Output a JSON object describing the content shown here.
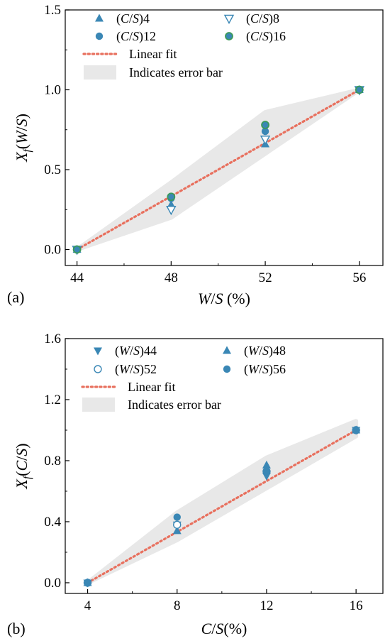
{
  "chart_data": [
    {
      "panel_label": "(a)",
      "type": "scatter",
      "title": "",
      "xlabel": "W/S (%)",
      "ylabel": "Xf(W/S)",
      "xlim": [
        43.5,
        57
      ],
      "ylim": [
        -0.1,
        1.5
      ],
      "xticks": [
        44,
        48,
        52,
        56
      ],
      "xticklabels": [
        "44",
        "48",
        "52",
        "56"
      ],
      "yticks": [
        0.0,
        0.5,
        1.0,
        1.5
      ],
      "yticklabels": [
        "0.0",
        "0.5",
        "1.0",
        "1.5"
      ],
      "legend": {
        "placement": "top-left",
        "entries": [
          {
            "label": "(C/S)4",
            "marker": "triangle-up"
          },
          {
            "label": "(C/S)8",
            "marker": "triangle-down-open"
          },
          {
            "label": "(C/S)12",
            "marker": "circle"
          },
          {
            "label": "(C/S)16",
            "marker": "circle-green-edge"
          },
          {
            "label": "Linear fit",
            "marker": "dotted-line"
          },
          {
            "label": "Indicates error bar",
            "marker": "shaded-band"
          }
        ]
      },
      "series": [
        {
          "name": "(C/S)4",
          "marker": "triangle-up",
          "points": [
            [
              44,
              0.0
            ],
            [
              48,
              0.28
            ],
            [
              52,
              0.66
            ],
            [
              56,
              1.0
            ]
          ]
        },
        {
          "name": "(C/S)8",
          "marker": "triangle-down-open",
          "points": [
            [
              44,
              0.0
            ],
            [
              48,
              0.25
            ],
            [
              52,
              0.69
            ],
            [
              56,
              1.0
            ]
          ]
        },
        {
          "name": "(C/S)12",
          "marker": "circle",
          "points": [
            [
              44,
              0.0
            ],
            [
              48,
              0.32
            ],
            [
              52,
              0.74
            ],
            [
              56,
              1.0
            ]
          ]
        },
        {
          "name": "(C/S)16",
          "marker": "circle-green-edge",
          "points": [
            [
              44,
              0.0
            ],
            [
              48,
              0.33
            ],
            [
              52,
              0.78
            ],
            [
              56,
              1.0
            ]
          ]
        }
      ],
      "fit_line": {
        "name": "Linear fit",
        "points": [
          [
            44,
            0.0
          ],
          [
            56,
            1.0
          ]
        ]
      },
      "error_band": {
        "name": "Indicates error bar",
        "x": [
          44,
          48,
          52,
          56
        ],
        "upper": [
          0.0,
          0.42,
          0.86,
          1.0
        ],
        "lower": [
          0.0,
          0.2,
          0.6,
          1.0
        ]
      }
    },
    {
      "panel_label": "(b)",
      "type": "scatter",
      "title": "",
      "xlabel": "C/S(%)",
      "ylabel": "Xf(C/S)",
      "xlim": [
        3,
        17.2
      ],
      "ylim": [
        -0.07,
        1.6
      ],
      "xticks": [
        4,
        8,
        12,
        16
      ],
      "xticklabels": [
        "4",
        "8",
        "12",
        "16"
      ],
      "yticks": [
        0.0,
        0.4,
        0.8,
        1.2,
        1.6
      ],
      "yticklabels": [
        "0.0",
        "0.4",
        "0.8",
        "1.2",
        "1.6"
      ],
      "legend": {
        "placement": "top-left",
        "entries": [
          {
            "label": "(W/S)44",
            "marker": "triangle-down"
          },
          {
            "label": "(W/S)48",
            "marker": "triangle-up"
          },
          {
            "label": "(W/S)52",
            "marker": "circle-open"
          },
          {
            "label": "(W/S)56",
            "marker": "circle"
          },
          {
            "label": "Linear fit",
            "marker": "dotted-line"
          },
          {
            "label": "Indicates error bar",
            "marker": "shaded-band"
          }
        ]
      },
      "series": [
        {
          "name": "(W/S)44",
          "marker": "triangle-down",
          "points": [
            [
              4,
              0.0
            ],
            [
              8,
              0.38
            ],
            [
              12,
              0.7
            ],
            [
              16,
              1.0
            ]
          ]
        },
        {
          "name": "(W/S)48",
          "marker": "triangle-up",
          "points": [
            [
              4,
              0.0
            ],
            [
              8,
              0.34
            ],
            [
              12,
              0.77
            ],
            [
              16,
              1.0
            ]
          ]
        },
        {
          "name": "(W/S)52",
          "marker": "circle-open",
          "points": [
            [
              4,
              0.0
            ],
            [
              8,
              0.38
            ],
            [
              12,
              0.73
            ],
            [
              16,
              1.0
            ]
          ]
        },
        {
          "name": "(W/S)56",
          "marker": "circle",
          "points": [
            [
              4,
              0.0
            ],
            [
              8,
              0.43
            ],
            [
              12,
              0.73
            ],
            [
              16,
              1.0
            ]
          ]
        }
      ],
      "fit_line": {
        "name": "Linear fit",
        "points": [
          [
            4,
            0.0
          ],
          [
            16,
            1.0
          ]
        ]
      },
      "error_band": {
        "name": "Indicates error bar",
        "x": [
          4,
          8,
          12,
          16
        ],
        "upper": [
          0.0,
          0.46,
          0.82,
          1.06
        ],
        "lower": [
          0.0,
          0.28,
          0.62,
          0.96
        ]
      }
    }
  ],
  "colors": {
    "marker_fill": "#3a87b5",
    "marker_edge_green": "#3b9a5a",
    "fit_line": "#e8705e",
    "band": "#e8e8e8",
    "axis": "#000000"
  }
}
